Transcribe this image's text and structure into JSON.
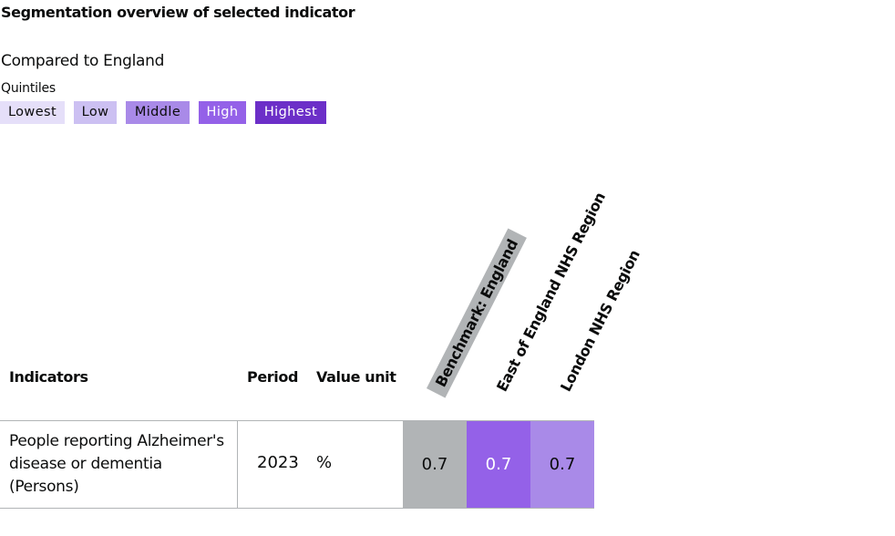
{
  "header": {
    "title": "Segmentation overview of selected indicator",
    "compared_to": "Compared to England",
    "quintiles_label": "Quintiles"
  },
  "legend": {
    "lowest": "Lowest",
    "low": "Low",
    "middle": "Middle",
    "high": "High",
    "highest": "Highest",
    "colors": {
      "lowest": "#e5dff9",
      "low": "#ccc0f2",
      "middle": "#a98ae8",
      "high": "#9461e8",
      "highest": "#6c2fc8"
    }
  },
  "table": {
    "headers": {
      "indicators": "Indicators",
      "period": "Period",
      "value_unit": "Value unit",
      "benchmark": "Benchmark: England",
      "area1": "East of England NHS Region",
      "area2": "London NHS Region"
    },
    "rows": [
      {
        "indicator": "People reporting Alzheimer's disease or dementia (Persons)",
        "period": "2023",
        "unit": "%",
        "benchmark": "0.7",
        "area1": "0.7",
        "area1_quintile": "High",
        "area2": "0.7",
        "area2_quintile": "Middle"
      }
    ]
  }
}
